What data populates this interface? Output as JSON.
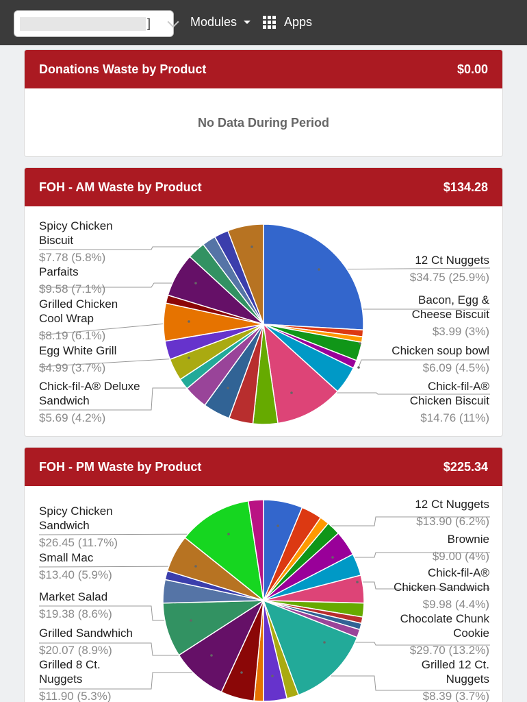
{
  "nav": {
    "modules": "Modules",
    "apps": "Apps",
    "store_bracket": "]"
  },
  "donations": {
    "title": "Donations Waste by Product",
    "total": "$0.00",
    "empty": "No Data During Period"
  },
  "am": {
    "title": "FOH - AM Waste by Product",
    "total": "$134.28",
    "labels": [
      {
        "name": "Spicy Chicken\nBiscuit",
        "value": "$7.78 (5.8%)"
      },
      {
        "name": "Parfaits",
        "value": "$9.58 (7.1%)"
      },
      {
        "name": "Grilled Chicken\nCool Wrap",
        "value": "$8.19 (6.1%)"
      },
      {
        "name": "Egg White Grill",
        "value": "$4.99 (3.7%)"
      },
      {
        "name": "Chick-fil-A® Deluxe\nSandwich",
        "value": "$5.69 (4.2%)"
      },
      {
        "name": "12 Ct Nuggets",
        "value": "$34.75 (25.9%)"
      },
      {
        "name": "Bacon, Egg &\nCheese Biscuit",
        "value": "$3.99 (3%)"
      },
      {
        "name": "Chicken soup bowl",
        "value": "$6.09 (4.5%)"
      },
      {
        "name": "Chick-fil-A®\nChicken Biscuit",
        "value": "$14.76 (11%)"
      }
    ],
    "colors": [
      "#3366cc",
      "#dc3912",
      "#ff9900",
      "#109618",
      "#990099",
      "#0099c6",
      "#dd4477",
      "#66aa00",
      "#b82e2e",
      "#316395",
      "#994499",
      "#22aa99",
      "#aaaa11",
      "#6633cc",
      "#e67300",
      "#8b0707",
      "#651067",
      "#329262",
      "#5574a6",
      "#3b3eac",
      "#b77322"
    ],
    "slices": [
      25.9,
      1.1,
      0.9,
      3.0,
      1.3,
      4.5,
      11.0,
      4.0,
      3.9,
      4.4,
      3.9,
      1.8,
      3.6,
      3.0,
      6.1,
      1.3,
      7.1,
      2.9,
      2.2,
      2.3,
      5.8
    ]
  },
  "pm": {
    "title": "FOH - PM Waste by Product",
    "total": "$225.34",
    "labels": [
      {
        "name": "Spicy Chicken\nSandwich",
        "value": "$26.45 (11.7%)"
      },
      {
        "name": "Small Mac",
        "value": "$13.40 (5.9%)"
      },
      {
        "name": "Market Salad",
        "value": "$19.38 (8.6%)"
      },
      {
        "name": "Grilled Sandwhich",
        "value": "$20.07 (8.9%)"
      },
      {
        "name": "Grilled 8 Ct.\nNuggets",
        "value": "$11.90 (5.3%)"
      },
      {
        "name": "12 Ct Nuggets",
        "value": "$13.90 (6.2%)"
      },
      {
        "name": "Brownie",
        "value": "$9.00 (4%)"
      },
      {
        "name": "Chick-fil-A®\nChicken Sandwich",
        "value": "$9.98 (4.4%)"
      },
      {
        "name": "Chocolate Chunk\nCookie",
        "value": "$29.70 (13.2%)"
      },
      {
        "name": "Grilled 12 Ct.\nNuggets",
        "value": "$8.39 (3.7%)"
      }
    ],
    "colors": [
      "#3366cc",
      "#dc3912",
      "#ff9900",
      "#109618",
      "#990099",
      "#0099c6",
      "#dd4477",
      "#66aa00",
      "#b82e2e",
      "#316395",
      "#994499",
      "#22aa99",
      "#aaaa11",
      "#6633cc",
      "#e67300",
      "#8b0707",
      "#651067",
      "#329262",
      "#5574a6",
      "#3b3eac",
      "#b77322",
      "#16d620",
      "#b91383"
    ],
    "slices": [
      6.2,
      3.3,
      1.5,
      2.2,
      4.0,
      3.5,
      4.4,
      2.2,
      1.0,
      1.0,
      1.3,
      13.2,
      1.9,
      3.7,
      1.5,
      5.3,
      8.9,
      8.6,
      3.7,
      1.4,
      5.9,
      11.7,
      2.4
    ]
  }
}
